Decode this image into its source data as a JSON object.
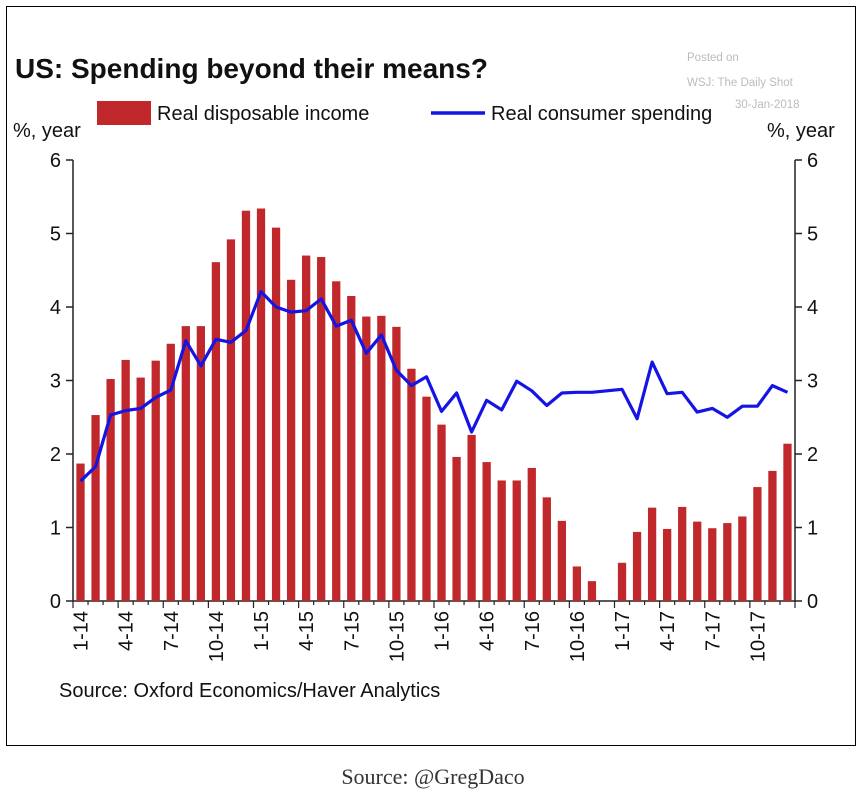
{
  "chart_data": {
    "type": "bar+line",
    "title": "US: Spending beyond their means?",
    "watermark": [
      "Posted on",
      "WSJ: The Daily Shot",
      "30-Jan-2018"
    ],
    "left_axis_label": "%, year",
    "right_axis_label": "%, year",
    "ylim": [
      0,
      6
    ],
    "yticks": [
      "0",
      "1",
      "2",
      "3",
      "4",
      "5",
      "6"
    ],
    "x_tick_labels": [
      "1-14",
      "4-14",
      "7-14",
      "10-14",
      "1-15",
      "4-15",
      "7-15",
      "10-15",
      "1-16",
      "4-16",
      "7-16",
      "10-16",
      "1-17",
      "4-17",
      "7-17",
      "10-17"
    ],
    "months": 48,
    "source": "Source: Oxford Economics/Haver Analytics",
    "colors": {
      "bar": "#c0282b",
      "line": "#1414e6",
      "axis": "#222222"
    },
    "series": [
      {
        "name": "Real disposable income",
        "kind": "bar",
        "values": [
          1.87,
          2.53,
          3.02,
          3.28,
          3.04,
          3.27,
          3.5,
          3.74,
          3.74,
          4.61,
          4.92,
          5.31,
          5.34,
          5.08,
          4.37,
          4.7,
          4.68,
          4.35,
          4.15,
          3.87,
          3.88,
          3.73,
          3.16,
          2.78,
          2.4,
          1.96,
          2.26,
          1.89,
          1.64,
          1.64,
          1.81,
          1.41,
          1.09,
          0.47,
          0.27,
          null,
          0.52,
          0.94,
          1.27,
          0.98,
          1.28,
          1.08,
          0.99,
          1.06,
          1.15,
          1.55,
          1.77,
          2.14
        ]
      },
      {
        "name": "Real consumer spending",
        "kind": "line",
        "values": [
          1.63,
          1.83,
          2.53,
          2.59,
          2.62,
          2.77,
          2.87,
          3.54,
          3.2,
          3.56,
          3.52,
          3.68,
          4.21,
          4.0,
          3.93,
          3.95,
          4.11,
          3.74,
          3.82,
          3.37,
          3.62,
          3.14,
          2.93,
          3.05,
          2.58,
          2.83,
          2.3,
          2.73,
          2.6,
          2.99,
          2.86,
          2.66,
          2.83,
          2.84,
          2.84,
          2.86,
          2.88,
          2.48,
          3.25,
          2.82,
          2.84,
          2.57,
          2.62,
          2.5,
          2.65,
          2.65,
          2.93,
          2.84
        ]
      }
    ]
  },
  "caption": "Source: @GregDaco"
}
